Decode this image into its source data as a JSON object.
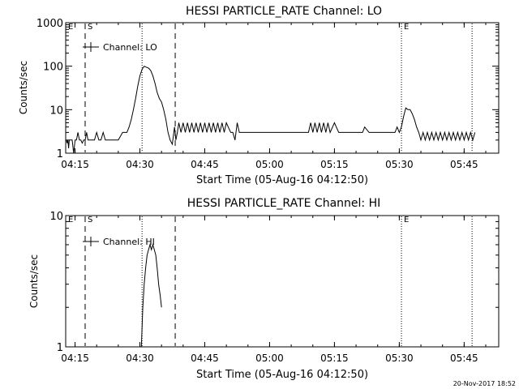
{
  "footer_timestamp": "20-Nov-2017 18:52",
  "chart_data": [
    {
      "type": "line",
      "title": "HESSI PARTICLE_RATE Channel: LO",
      "xlabel": "Start Time (05-Aug-16 04:12:50)",
      "ylabel": "Counts/sec",
      "y_scale": "log",
      "xlim": [
        "04:12:50",
        "05:53:00"
      ],
      "ylim": [
        1,
        1000
      ],
      "x_ticks": [
        "04:15",
        "04:30",
        "04:45",
        "05:00",
        "05:15",
        "05:30",
        "05:45"
      ],
      "y_ticks": [
        "1",
        "10",
        "100",
        "1000"
      ],
      "legend": {
        "position": "top-left",
        "entries": [
          "Channel: LO"
        ]
      },
      "markers": [
        {
          "label": "E",
          "time": "04:12:50",
          "style": "dotted"
        },
        {
          "label": "S",
          "time": "04:17:20",
          "style": "dashed"
        },
        {
          "label": "",
          "time": "04:30:30",
          "style": "dotted"
        },
        {
          "label": "",
          "time": "04:38:10",
          "style": "dashed"
        },
        {
          "label": "E",
          "time": "05:30:30",
          "style": "dotted"
        },
        {
          "label": "",
          "time": "05:46:50",
          "style": "dotted"
        }
      ],
      "series": [
        {
          "name": "Channel: LO",
          "x": [
            "04:13:00",
            "04:13:10",
            "04:13:20",
            "04:13:30",
            "04:13:40",
            "04:14:00",
            "04:14:20",
            "04:14:40",
            "04:15:00",
            "04:15:20",
            "04:15:40",
            "04:16:00",
            "04:16:20",
            "04:16:40",
            "04:17:00",
            "04:17:20",
            "04:17:40",
            "04:18:00",
            "04:18:30",
            "04:19:00",
            "04:19:30",
            "04:20:00",
            "04:20:30",
            "04:21:00",
            "04:21:30",
            "04:22:00",
            "04:22:30",
            "04:23:00",
            "04:23:30",
            "04:24:00",
            "04:25:00",
            "04:26:00",
            "04:26:30",
            "04:27:00",
            "04:27:30",
            "04:28:00",
            "04:28:30",
            "04:29:00",
            "04:29:30",
            "04:30:00",
            "04:30:30",
            "04:31:00",
            "04:31:30",
            "04:32:00",
            "04:32:30",
            "04:33:00",
            "04:33:30",
            "04:34:00",
            "04:34:30",
            "04:35:00",
            "04:35:30",
            "04:36:00",
            "04:36:30",
            "04:37:00",
            "04:37:30",
            "04:38:00",
            "04:38:20",
            "04:38:40",
            "04:39:00",
            "04:39:30",
            "04:40:00",
            "04:40:30",
            "04:41:00",
            "04:41:30",
            "04:42:00",
            "04:42:30",
            "04:43:00",
            "04:43:30",
            "04:44:00",
            "04:44:30",
            "04:45:00",
            "04:45:30",
            "04:46:00",
            "04:46:30",
            "04:47:00",
            "04:47:30",
            "04:48:00",
            "04:48:30",
            "04:49:00",
            "04:49:30",
            "04:50:00",
            "04:51:00",
            "04:51:30",
            "04:52:00",
            "04:52:30",
            "04:53:00",
            "04:54:00",
            "04:55:00",
            "04:56:00",
            "04:57:00",
            "04:58:00",
            "04:59:00",
            "05:00:00",
            "05:01:00",
            "05:02:00",
            "05:03:00",
            "05:04:00",
            "05:05:00",
            "05:06:00",
            "05:07:00",
            "05:08:00",
            "05:08:30",
            "05:09:00",
            "05:09:30",
            "05:10:00",
            "05:10:30",
            "05:11:00",
            "05:11:30",
            "05:12:00",
            "05:12:30",
            "05:13:00",
            "05:13:30",
            "05:14:00",
            "05:15:00",
            "05:16:00",
            "05:17:00",
            "05:18:00",
            "05:19:00",
            "05:20:00",
            "05:21:00",
            "05:21:30",
            "05:22:00",
            "05:23:00",
            "05:24:00",
            "05:25:00",
            "05:26:00",
            "05:27:00",
            "05:28:00",
            "05:29:00",
            "05:29:30",
            "05:30:00",
            "05:30:30",
            "05:31:00",
            "05:31:30",
            "05:32:00",
            "05:32:30",
            "05:33:00",
            "05:33:30",
            "05:34:00",
            "05:34:30",
            "05:35:00",
            "05:35:30",
            "05:36:00",
            "05:36:30",
            "05:37:00",
            "05:37:30",
            "05:38:00",
            "05:38:30",
            "05:39:00",
            "05:39:30",
            "05:40:00",
            "05:40:30",
            "05:41:00",
            "05:41:30",
            "05:42:00",
            "05:42:30",
            "05:43:00",
            "05:43:30",
            "05:44:00",
            "05:44:30",
            "05:45:00",
            "05:45:30",
            "05:46:00",
            "05:46:30",
            "05:47:00",
            "05:47:30"
          ],
          "y": [
            2,
            1.7,
            2,
            1.3,
            2,
            2,
            2,
            1,
            2,
            2,
            3,
            2,
            2,
            1.7,
            2,
            2,
            3,
            2,
            2,
            2,
            2,
            3,
            2,
            2,
            3,
            2,
            2,
            2,
            2,
            2,
            2,
            3,
            3,
            3,
            4,
            6,
            10,
            18,
            35,
            60,
            85,
            100,
            95,
            90,
            80,
            60,
            40,
            25,
            18,
            15,
            10,
            6,
            3,
            2,
            1.6,
            4,
            2,
            3,
            5,
            3,
            5,
            3,
            5,
            3,
            5,
            3,
            5,
            3,
            5,
            3,
            5,
            3,
            5,
            3,
            5,
            3,
            5,
            3,
            5,
            3,
            5,
            3,
            3,
            2,
            5,
            3,
            3,
            3,
            3,
            3,
            3,
            3,
            3,
            3,
            3,
            3,
            3,
            3,
            3,
            3,
            3,
            3,
            3,
            5,
            3,
            5,
            3,
            5,
            3,
            5,
            3,
            5,
            3,
            5,
            3,
            3,
            3,
            3,
            3,
            3,
            3,
            4,
            3,
            3,
            3,
            3,
            3,
            3,
            3,
            4,
            3,
            4,
            7,
            11,
            10,
            10,
            8,
            6,
            4,
            3,
            2,
            3,
            2,
            3,
            2,
            3,
            2,
            3,
            2,
            3,
            2,
            3,
            2,
            3,
            2,
            3,
            2,
            3,
            2,
            3,
            2,
            3,
            2,
            3,
            2,
            3
          ]
        }
      ]
    },
    {
      "type": "line",
      "title": "HESSI PARTICLE_RATE Channel: HI",
      "xlabel": "Start Time (05-Aug-16 04:12:50)",
      "ylabel": "Counts/sec",
      "y_scale": "log",
      "xlim": [
        "04:12:50",
        "05:53:00"
      ],
      "ylim": [
        1,
        10
      ],
      "x_ticks": [
        "04:15",
        "04:30",
        "04:45",
        "05:00",
        "05:15",
        "05:30",
        "05:45"
      ],
      "y_ticks": [
        "1",
        "10"
      ],
      "legend": {
        "position": "top-left",
        "entries": [
          "Channel: HI"
        ]
      },
      "markers": [
        {
          "label": "E",
          "time": "04:12:50",
          "style": "dotted"
        },
        {
          "label": "S",
          "time": "04:17:20",
          "style": "dashed"
        },
        {
          "label": "",
          "time": "04:30:30",
          "style": "dotted"
        },
        {
          "label": "",
          "time": "04:38:10",
          "style": "dashed"
        },
        {
          "label": "E",
          "time": "05:30:30",
          "style": "dotted"
        },
        {
          "label": "",
          "time": "05:46:50",
          "style": "dotted"
        }
      ],
      "series": [
        {
          "name": "Channel: HI",
          "x": [
            "04:30:10",
            "04:30:20",
            "04:30:40",
            "04:31:00",
            "04:31:20",
            "04:31:40",
            "04:32:00",
            "04:32:20",
            "04:32:40",
            "04:33:00",
            "04:33:20",
            "04:33:40",
            "04:34:00",
            "04:34:20",
            "04:34:40",
            "04:35:00"
          ],
          "y": [
            1,
            1,
            2,
            3,
            4,
            5,
            5.5,
            6,
            5.5,
            6,
            5.5,
            5,
            4,
            3,
            2.5,
            2
          ]
        }
      ]
    }
  ]
}
